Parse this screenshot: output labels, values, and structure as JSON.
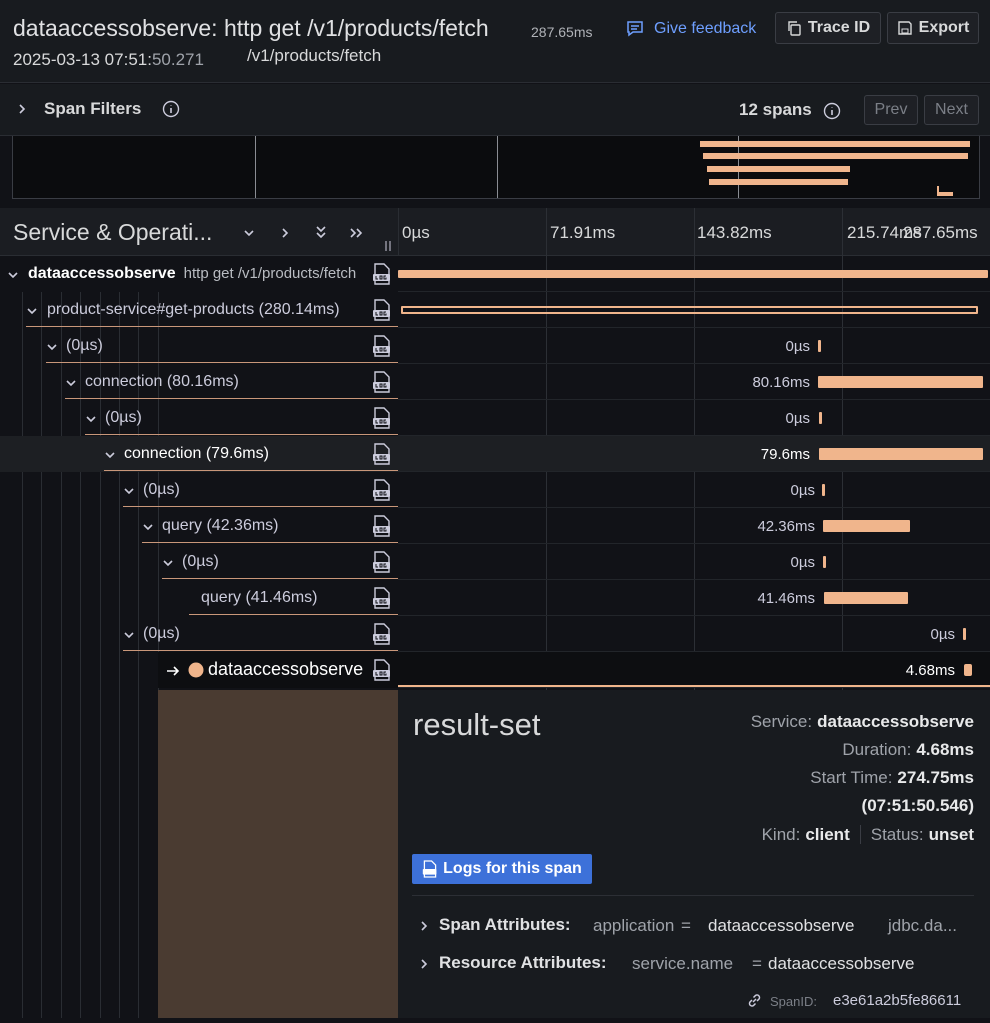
{
  "header": {
    "title": "dataaccessobserve: http get /v1/products/fetch",
    "duration": "287.65ms",
    "date": "2025-03-13 07:51:",
    "date_seconds": "50.271",
    "url": "/v1/products/fetch",
    "feedback": "Give feedback",
    "trace_id": "Trace ID",
    "export": "Export"
  },
  "filters": {
    "label": "Span Filters",
    "count": "12 spans",
    "prev": "Prev",
    "next": "Next"
  },
  "timeline": {
    "column_title": "Service & Operati...",
    "ticks": [
      "0µs",
      "71.91ms",
      "143.82ms",
      "215.74ms",
      "287.65ms"
    ]
  },
  "spans": [
    {
      "service": "dataaccessobserve",
      "operation": "http get /v1/products/fetch"
    },
    {
      "operation": "product-service#get-products (280.14ms)"
    },
    {
      "operation": "(0µs)",
      "bar_label": "0µs"
    },
    {
      "operation": "connection (80.16ms)",
      "bar_label": "80.16ms"
    },
    {
      "operation": "(0µs)",
      "bar_label": "0µs"
    },
    {
      "operation": "connection (79.6ms)",
      "bar_label": "79.6ms"
    },
    {
      "operation": "(0µs)",
      "bar_label": "0µs"
    },
    {
      "operation": "query (42.36ms)",
      "bar_label": "42.36ms"
    },
    {
      "operation": "(0µs)",
      "bar_label": "0µs"
    },
    {
      "operation": "query (41.46ms)",
      "bar_label": "41.46ms"
    },
    {
      "operation": "(0µs)",
      "bar_label": "0µs"
    },
    {
      "service": "dataaccessobserve",
      "bar_label": "4.68ms"
    }
  ],
  "details": {
    "title": "result-set",
    "service_label": "Service:",
    "service": "dataaccessobserve",
    "duration_label": "Duration:",
    "duration": "4.68ms",
    "start_label": "Start Time:",
    "start": "274.75ms",
    "start_clock": "(07:51:50.546)",
    "kind_label": "Kind:",
    "kind": "client",
    "status_label": "Status:",
    "status": "unset",
    "logs_button": "Logs for this span",
    "span_attributes_label": "Span Attributes:",
    "span_attr_key": "application",
    "span_attr_equals": "=",
    "span_attr_value": "dataaccessobserve",
    "span_attr_more": "jdbc.da...",
    "resource_attributes_label": "Resource Attributes:",
    "resource_attr_key": "service.name",
    "resource_attr_equals": "=",
    "resource_attr_value": "dataaccessobserve",
    "span_id_label": "SpanID:",
    "span_id": "e3e61a2b5fe86611"
  }
}
